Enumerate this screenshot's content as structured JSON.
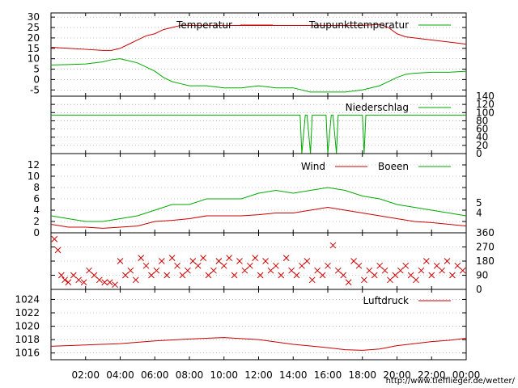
{
  "footer_url": "http://www.tiefflieger.de/wetter/",
  "x_ticks": [
    "02:00",
    "04:00",
    "06:00",
    "08:00",
    "10:00",
    "12:00",
    "14:00",
    "16:00",
    "18:00",
    "20:00",
    "22:00",
    "00:00"
  ],
  "chart_data": [
    {
      "type": "line",
      "panel": "temperature",
      "title": "",
      "xlabel": "",
      "ylabel": "",
      "ylim": [
        -8,
        32
      ],
      "yticks": [
        -5,
        0,
        5,
        10,
        15,
        20,
        25,
        30
      ],
      "grid": true,
      "legend_position": "top-right",
      "x_hours": [
        0,
        1,
        2,
        3,
        3.5,
        4,
        4.5,
        5,
        5.5,
        6,
        6.5,
        7,
        7.5,
        8,
        9,
        10,
        11,
        12,
        13,
        14,
        15,
        16,
        17,
        18,
        19,
        19.5,
        20,
        20.5,
        21,
        22,
        23,
        24
      ],
      "series": [
        {
          "name": "Temperatur",
          "color": "#cc0000",
          "values": [
            15.5,
            15,
            14.5,
            14,
            14,
            15,
            17,
            19,
            21,
            22,
            24,
            25,
            26,
            26,
            26,
            26,
            26,
            26,
            26,
            26,
            26,
            26,
            26,
            26,
            26.5,
            25,
            22,
            20.5,
            20,
            19,
            18,
            17
          ]
        },
        {
          "name": "Taupunkttemperatur",
          "color": "#00aa00",
          "values": [
            7,
            7.2,
            7.5,
            8.5,
            9.5,
            10,
            9,
            8,
            6,
            4,
            1,
            -1,
            -2,
            -3,
            -3,
            -4,
            -4,
            -3,
            -4,
            -4,
            -6,
            -6,
            -6,
            -5,
            -3,
            -1,
            1,
            2.5,
            3,
            3.5,
            3.5,
            4
          ]
        }
      ]
    },
    {
      "type": "line",
      "panel": "precipitation",
      "title": "",
      "ylim": [
        0,
        140
      ],
      "yticks": [
        0,
        20,
        40,
        60,
        80,
        100,
        120,
        140
      ],
      "legend_position": "top-right",
      "x_hours": [
        0,
        14.4,
        14.5,
        14.7,
        14.8,
        15,
        15.1,
        15.9,
        16,
        16.2,
        16.3,
        16.5,
        16.6,
        18,
        18.1,
        18.2,
        18.3,
        24
      ],
      "series": [
        {
          "name": "Niederschlag",
          "color": "#00aa00",
          "values": [
            94,
            94,
            0,
            94,
            94,
            0,
            94,
            94,
            0,
            94,
            94,
            0,
            94,
            94,
            0,
            94,
            94,
            94
          ]
        }
      ]
    },
    {
      "type": "line",
      "panel": "wind",
      "title": "",
      "ylim": [
        0,
        14
      ],
      "yticks": [
        0,
        2,
        4,
        6,
        8,
        10,
        12
      ],
      "right_labels": [
        "4",
        "5"
      ],
      "legend_position": "top-right",
      "x_hours": [
        0,
        1,
        2,
        3,
        4,
        5,
        6,
        7,
        8,
        9,
        10,
        11,
        12,
        13,
        14,
        15,
        16,
        17,
        18,
        19,
        20,
        21,
        22,
        23,
        24
      ],
      "series": [
        {
          "name": "Wind",
          "color": "#cc0000",
          "values": [
            1.5,
            1,
            1,
            0.8,
            1,
            1.2,
            2,
            2.2,
            2.5,
            3,
            3,
            3,
            3.2,
            3.5,
            3.5,
            4,
            4.5,
            4,
            3.5,
            3,
            2.5,
            2,
            1.8,
            1.5,
            1.2
          ]
        },
        {
          "name": "Boeen",
          "color": "#00aa00",
          "values": [
            3,
            2.5,
            2,
            2,
            2.5,
            3,
            4,
            5,
            5,
            6,
            6,
            6,
            7,
            7.5,
            7,
            7.5,
            8,
            7.5,
            6.5,
            6,
            5,
            4.5,
            4,
            3.5,
            3
          ]
        }
      ]
    },
    {
      "type": "scatter",
      "panel": "wind_direction",
      "title": "",
      "ylim": [
        0,
        360
      ],
      "yticks": [
        0,
        90,
        180,
        270,
        360
      ],
      "marker": "x",
      "color": "#cc0000",
      "x_hours": [
        0.2,
        0.4,
        0.6,
        0.8,
        1,
        1.3,
        1.6,
        1.9,
        2.2,
        2.5,
        2.8,
        3.1,
        3.4,
        3.7,
        4,
        4.3,
        4.6,
        4.9,
        5.2,
        5.5,
        5.8,
        6.1,
        6.4,
        6.7,
        7,
        7.3,
        7.6,
        7.9,
        8.2,
        8.5,
        8.8,
        9.1,
        9.4,
        9.7,
        10,
        10.3,
        10.6,
        10.9,
        11.2,
        11.5,
        11.8,
        12.1,
        12.4,
        12.7,
        13,
        13.3,
        13.6,
        13.9,
        14.2,
        14.5,
        14.8,
        15.1,
        15.4,
        15.7,
        16,
        16.3,
        16.6,
        16.9,
        17.2,
        17.5,
        17.8,
        18.1,
        18.4,
        18.7,
        19,
        19.3,
        19.6,
        19.9,
        20.2,
        20.5,
        20.8,
        21.1,
        21.4,
        21.7,
        22,
        22.3,
        22.6,
        22.9,
        23.2,
        23.5,
        23.8
      ],
      "values": [
        320,
        250,
        90,
        60,
        45,
        90,
        60,
        45,
        120,
        90,
        60,
        45,
        45,
        30,
        180,
        90,
        120,
        60,
        200,
        150,
        90,
        120,
        180,
        90,
        200,
        150,
        90,
        120,
        180,
        150,
        200,
        90,
        120,
        180,
        150,
        200,
        90,
        180,
        120,
        150,
        200,
        90,
        180,
        120,
        150,
        90,
        200,
        120,
        90,
        150,
        180,
        60,
        120,
        90,
        150,
        280,
        120,
        90,
        45,
        180,
        150,
        60,
        120,
        90,
        150,
        120,
        60,
        90,
        120,
        150,
        90,
        60,
        120,
        180,
        90,
        150,
        120,
        180,
        90,
        150,
        120
      ]
    },
    {
      "type": "line",
      "panel": "pressure",
      "title": "",
      "ylim": [
        1015,
        1025.5
      ],
      "yticks": [
        1016,
        1018,
        1020,
        1022,
        1024
      ],
      "legend_position": "top-right",
      "x_hours": [
        0,
        2,
        4,
        6,
        8,
        10,
        12,
        14,
        16,
        17,
        18,
        19,
        20,
        21,
        22,
        23,
        24
      ],
      "series": [
        {
          "name": "Luftdruck",
          "color": "#cc0000",
          "values": [
            1017,
            1017.2,
            1017.4,
            1017.8,
            1018.1,
            1018.3,
            1018,
            1017.3,
            1016.8,
            1016.5,
            1016.4,
            1016.6,
            1017.1,
            1017.4,
            1017.7,
            1017.9,
            1018.2
          ]
        }
      ]
    }
  ]
}
